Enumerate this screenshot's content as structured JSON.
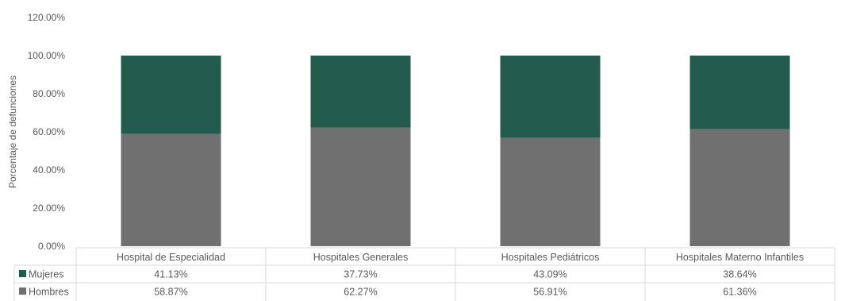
{
  "chart_data": {
    "type": "bar",
    "stacked": true,
    "percent": true,
    "ylabel": "Porcentaje de defunciones",
    "ylim": [
      0,
      120
    ],
    "yticks": [
      "0.00%",
      "20.00%",
      "40.00%",
      "60.00%",
      "80.00%",
      "100.00%",
      "120.00%"
    ],
    "grid": false,
    "legend": "data-table",
    "categories": [
      "Hospital de Especialidad",
      "Hospitales Generales",
      "Hospitales Pediátricos",
      "Hospitales Materno Infantiles"
    ],
    "series": [
      {
        "name": "Hombres",
        "color": "#707070",
        "values": [
          58.87,
          62.27,
          56.91,
          61.36
        ],
        "labels": [
          "58.87%",
          "62.27%",
          "56.91%",
          "61.36%"
        ]
      },
      {
        "name": "Mujeres",
        "color": "#235b4e",
        "values": [
          41.13,
          37.73,
          43.09,
          38.64
        ],
        "labels": [
          "41.13%",
          "37.73%",
          "43.09%",
          "38.64%"
        ]
      }
    ]
  }
}
